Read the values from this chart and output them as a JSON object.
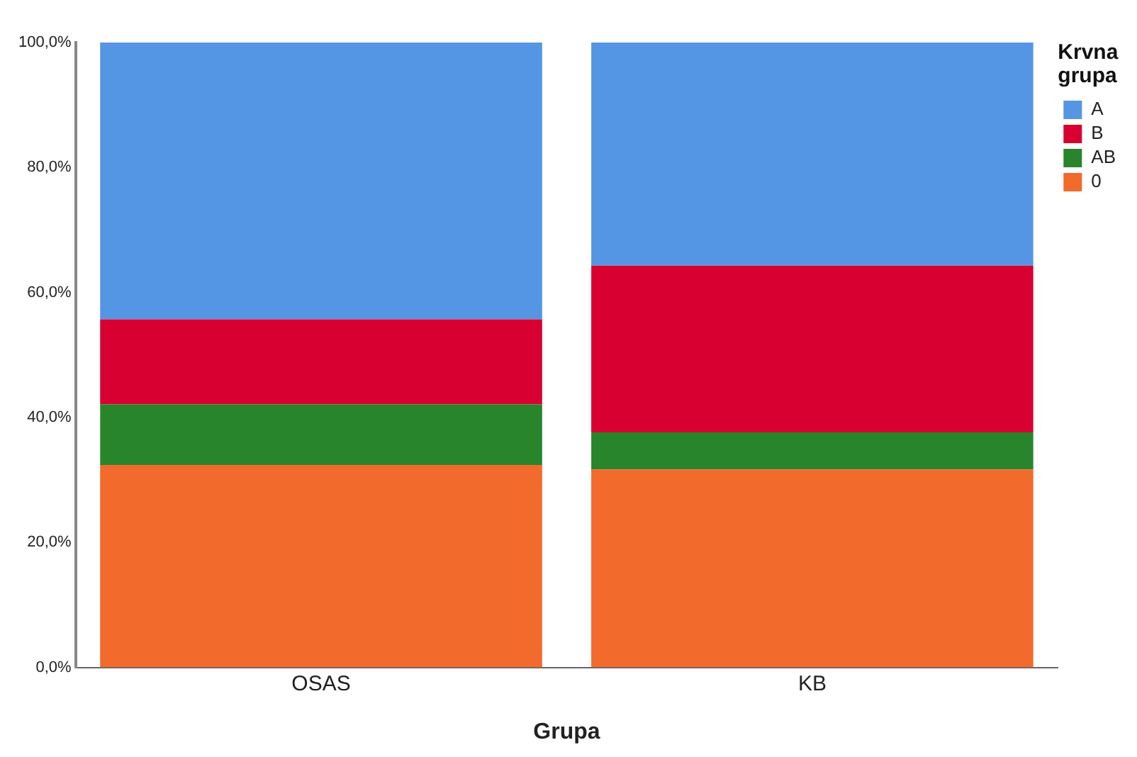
{
  "chart_data": {
    "type": "bar",
    "stacked": true,
    "xlabel": "Grupa",
    "legend_title": "Krvna grupa",
    "legend": "top right",
    "grid": false,
    "categories": [
      "OSAS",
      "KB"
    ],
    "series": [
      {
        "name": "0",
        "color": "#f26a2c",
        "values": [
          32.4,
          31.7
        ]
      },
      {
        "name": "AB",
        "color": "#29852b",
        "values": [
          9.7,
          5.9
        ]
      },
      {
        "name": "B",
        "color": "#d70030",
        "values": [
          13.6,
          26.7
        ]
      },
      {
        "name": "A",
        "color": "#5596e4",
        "values": [
          44.3,
          35.7
        ]
      }
    ],
    "ylim": [
      0,
      100
    ],
    "yticks": [
      {
        "value": 0,
        "label": "0,0%"
      },
      {
        "value": 20,
        "label": "20,0%"
      },
      {
        "value": 40,
        "label": "40,0%"
      },
      {
        "value": 60,
        "label": "60,0%"
      },
      {
        "value": 80,
        "label": "80,0%"
      },
      {
        "value": 100,
        "label": "100,0%"
      }
    ]
  }
}
